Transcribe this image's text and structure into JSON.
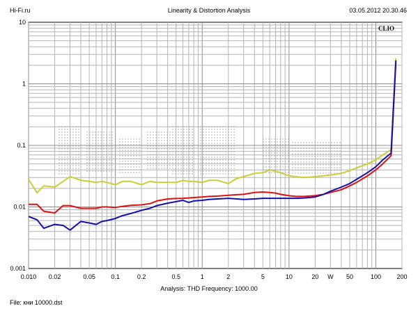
{
  "header": {
    "left": "Hi-Fi.ru",
    "center": "Linearity & Distortion Analysis",
    "right": "03.05.2012 20.30.46"
  },
  "footer": {
    "analysis": "Analysis: THD   Frequency: 1000.00",
    "file": "File: кни 10000.dst"
  },
  "chart_data": {
    "type": "line",
    "brand_label": "CLIO",
    "x_scale": "log",
    "y_scale": "log",
    "xlim": [
      0.01,
      200
    ],
    "ylim": [
      0.001,
      10
    ],
    "grid": true,
    "x_tick_labels": [
      {
        "v": 0.01,
        "t": "0.010"
      },
      {
        "v": 0.02,
        "t": "0.02"
      },
      {
        "v": 0.05,
        "t": "0.05"
      },
      {
        "v": 0.1,
        "t": "0.1"
      },
      {
        "v": 0.2,
        "t": "0.2"
      },
      {
        "v": 0.5,
        "t": "0.5"
      },
      {
        "v": 1,
        "t": "1"
      },
      {
        "v": 2,
        "t": "2"
      },
      {
        "v": 5,
        "t": "5"
      },
      {
        "v": 10,
        "t": "10"
      },
      {
        "v": 20,
        "t": "20"
      },
      {
        "v": 30,
        "t": "W"
      },
      {
        "v": 50,
        "t": "50"
      },
      {
        "v": 100,
        "t": "100"
      },
      {
        "v": 200,
        "t": "200"
      }
    ],
    "y_tick_labels": [
      {
        "v": 10,
        "t": "10"
      },
      {
        "v": 1,
        "t": "1"
      },
      {
        "v": 0.1,
        "t": "0.1"
      },
      {
        "v": 0.01,
        "t": "0.01"
      },
      {
        "v": 0.001,
        "t": "0.001"
      }
    ],
    "series": [
      {
        "color": "#cccc33",
        "x": [
          0.01,
          0.0125,
          0.015,
          0.02,
          0.025,
          0.03,
          0.035,
          0.04,
          0.05,
          0.06,
          0.07,
          0.08,
          0.1,
          0.12,
          0.15,
          0.2,
          0.25,
          0.3,
          0.4,
          0.5,
          0.6,
          0.7,
          0.8,
          1,
          1.2,
          1.5,
          2,
          2.5,
          3,
          4,
          5,
          6,
          7,
          8,
          10,
          12,
          15,
          20,
          25,
          30,
          40,
          50,
          60,
          80,
          100,
          120,
          150,
          170
        ],
        "y": [
          0.028,
          0.017,
          0.022,
          0.021,
          0.026,
          0.031,
          0.029,
          0.027,
          0.026,
          0.025,
          0.026,
          0.025,
          0.023,
          0.026,
          0.026,
          0.023,
          0.026,
          0.025,
          0.025,
          0.025,
          0.027,
          0.026,
          0.026,
          0.025,
          0.027,
          0.027,
          0.024,
          0.029,
          0.031,
          0.035,
          0.036,
          0.04,
          0.038,
          0.036,
          0.032,
          0.031,
          0.03,
          0.031,
          0.032,
          0.033,
          0.035,
          0.039,
          0.043,
          0.05,
          0.058,
          0.07,
          0.085,
          2.6
        ]
      },
      {
        "color": "#dd1111",
        "x": [
          0.01,
          0.0125,
          0.015,
          0.02,
          0.025,
          0.03,
          0.04,
          0.05,
          0.06,
          0.07,
          0.08,
          0.1,
          0.12,
          0.15,
          0.2,
          0.25,
          0.3,
          0.4,
          0.5,
          0.6,
          0.7,
          0.8,
          1,
          1.2,
          1.5,
          2,
          2.5,
          3,
          4,
          5,
          6,
          7,
          8,
          10,
          12,
          15,
          20,
          25,
          30,
          40,
          50,
          60,
          80,
          100,
          120,
          150,
          170
        ],
        "y": [
          0.011,
          0.011,
          0.0085,
          0.008,
          0.0105,
          0.0105,
          0.0095,
          0.0095,
          0.0095,
          0.01,
          0.01,
          0.0098,
          0.0102,
          0.0106,
          0.0108,
          0.0113,
          0.0125,
          0.0135,
          0.0137,
          0.0138,
          0.014,
          0.0142,
          0.0145,
          0.0148,
          0.015,
          0.0155,
          0.0158,
          0.016,
          0.0172,
          0.0175,
          0.0172,
          0.0168,
          0.016,
          0.0152,
          0.0148,
          0.0148,
          0.0153,
          0.016,
          0.0172,
          0.019,
          0.022,
          0.025,
          0.032,
          0.04,
          0.05,
          0.068,
          2.2
        ]
      },
      {
        "color": "#1111aa",
        "x": [
          0.01,
          0.0125,
          0.015,
          0.02,
          0.025,
          0.03,
          0.04,
          0.05,
          0.06,
          0.07,
          0.08,
          0.1,
          0.12,
          0.15,
          0.2,
          0.25,
          0.3,
          0.4,
          0.5,
          0.6,
          0.7,
          0.8,
          1,
          1.2,
          1.5,
          2,
          2.5,
          3,
          4,
          5,
          6,
          7,
          8,
          10,
          12,
          15,
          20,
          25,
          30,
          40,
          50,
          60,
          80,
          100,
          120,
          150,
          170
        ],
        "y": [
          0.007,
          0.0062,
          0.0045,
          0.0052,
          0.005,
          0.0042,
          0.0058,
          0.0055,
          0.0052,
          0.0058,
          0.006,
          0.0065,
          0.0072,
          0.0078,
          0.0088,
          0.0095,
          0.0105,
          0.0115,
          0.0122,
          0.0128,
          0.0118,
          0.0125,
          0.0128,
          0.0132,
          0.0135,
          0.0138,
          0.0135,
          0.0132,
          0.0135,
          0.0138,
          0.0138,
          0.0138,
          0.0138,
          0.0138,
          0.0138,
          0.014,
          0.0145,
          0.016,
          0.018,
          0.021,
          0.024,
          0.028,
          0.036,
          0.045,
          0.058,
          0.075,
          2.4
        ]
      }
    ]
  }
}
